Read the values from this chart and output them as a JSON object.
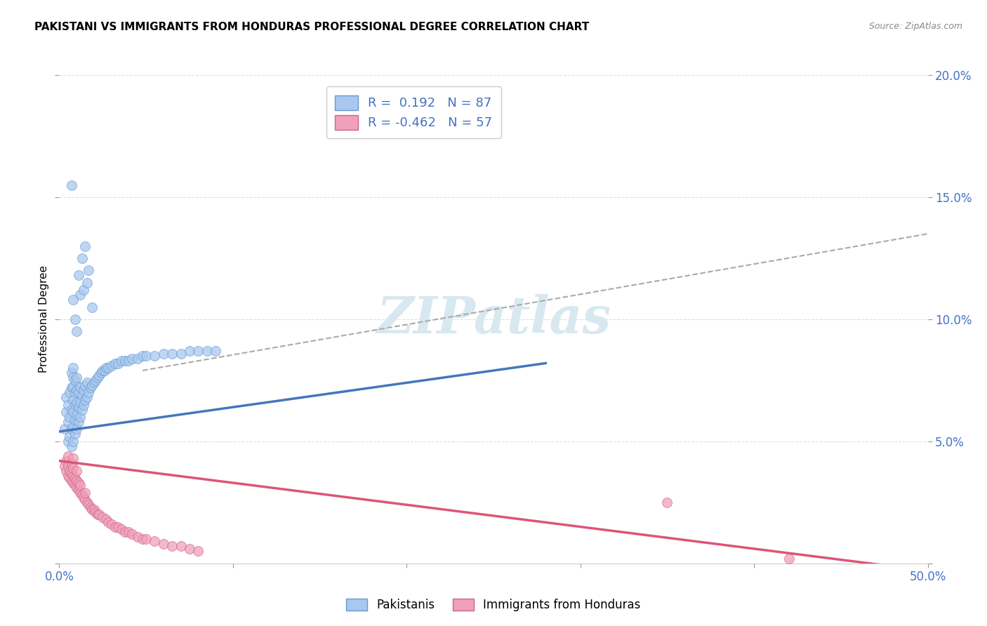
{
  "title": "PAKISTANI VS IMMIGRANTS FROM HONDURAS PROFESSIONAL DEGREE CORRELATION CHART",
  "source": "Source: ZipAtlas.com",
  "ylabel": "Professional Degree",
  "xlim": [
    0,
    0.5
  ],
  "ylim": [
    0,
    0.2
  ],
  "xticks": [
    0.0,
    0.1,
    0.2,
    0.3,
    0.4,
    0.5
  ],
  "yticks": [
    0.0,
    0.05,
    0.1,
    0.15,
    0.2
  ],
  "xtick_labels": [
    "0.0%",
    "",
    "",
    "",
    "",
    "50.0%"
  ],
  "ytick_labels": [
    "",
    "5.0%",
    "10.0%",
    "15.0%",
    "20.0%"
  ],
  "blue_R": 0.192,
  "blue_N": 87,
  "pink_R": -0.462,
  "pink_N": 57,
  "blue_color": "#A8C8F0",
  "pink_color": "#F0A0B8",
  "blue_edge_color": "#6699CC",
  "pink_edge_color": "#CC6688",
  "blue_line_color": "#4477BB",
  "pink_line_color": "#DD5577",
  "dashed_line_color": "#AAAAAA",
  "background_color": "#FFFFFF",
  "grid_color": "#DDDDDD",
  "watermark_color": "#D8E8F0",
  "legend_label_blue": "Pakistanis",
  "legend_label_pink": "Immigrants from Honduras",
  "blue_scatter_x": [
    0.003,
    0.004,
    0.004,
    0.005,
    0.005,
    0.005,
    0.006,
    0.006,
    0.006,
    0.007,
    0.007,
    0.007,
    0.007,
    0.007,
    0.008,
    0.008,
    0.008,
    0.008,
    0.008,
    0.008,
    0.008,
    0.009,
    0.009,
    0.009,
    0.009,
    0.009,
    0.01,
    0.01,
    0.01,
    0.01,
    0.01,
    0.011,
    0.011,
    0.011,
    0.012,
    0.012,
    0.012,
    0.013,
    0.013,
    0.014,
    0.014,
    0.015,
    0.015,
    0.016,
    0.016,
    0.017,
    0.018,
    0.019,
    0.02,
    0.021,
    0.022,
    0.023,
    0.024,
    0.025,
    0.026,
    0.027,
    0.028,
    0.03,
    0.032,
    0.034,
    0.036,
    0.038,
    0.04,
    0.042,
    0.045,
    0.048,
    0.05,
    0.055,
    0.06,
    0.065,
    0.07,
    0.075,
    0.08,
    0.085,
    0.09,
    0.012,
    0.014,
    0.016,
    0.007,
    0.008,
    0.009,
    0.01,
    0.011,
    0.013,
    0.015,
    0.017,
    0.019
  ],
  "blue_scatter_y": [
    0.055,
    0.062,
    0.068,
    0.05,
    0.058,
    0.065,
    0.052,
    0.06,
    0.07,
    0.048,
    0.055,
    0.063,
    0.072,
    0.078,
    0.05,
    0.056,
    0.062,
    0.067,
    0.072,
    0.076,
    0.08,
    0.053,
    0.059,
    0.065,
    0.07,
    0.075,
    0.055,
    0.061,
    0.066,
    0.071,
    0.076,
    0.058,
    0.064,
    0.07,
    0.06,
    0.066,
    0.072,
    0.063,
    0.069,
    0.065,
    0.071,
    0.067,
    0.073,
    0.068,
    0.074,
    0.07,
    0.072,
    0.073,
    0.074,
    0.075,
    0.076,
    0.077,
    0.078,
    0.079,
    0.079,
    0.08,
    0.08,
    0.081,
    0.082,
    0.082,
    0.083,
    0.083,
    0.083,
    0.084,
    0.084,
    0.085,
    0.085,
    0.085,
    0.086,
    0.086,
    0.086,
    0.087,
    0.087,
    0.087,
    0.087,
    0.11,
    0.112,
    0.115,
    0.155,
    0.108,
    0.1,
    0.095,
    0.118,
    0.125,
    0.13,
    0.12,
    0.105
  ],
  "pink_scatter_x": [
    0.003,
    0.004,
    0.004,
    0.005,
    0.005,
    0.005,
    0.006,
    0.006,
    0.007,
    0.007,
    0.007,
    0.008,
    0.008,
    0.008,
    0.008,
    0.009,
    0.009,
    0.01,
    0.01,
    0.01,
    0.011,
    0.011,
    0.012,
    0.012,
    0.013,
    0.014,
    0.015,
    0.015,
    0.016,
    0.017,
    0.018,
    0.019,
    0.02,
    0.021,
    0.022,
    0.023,
    0.025,
    0.027,
    0.028,
    0.03,
    0.032,
    0.034,
    0.036,
    0.038,
    0.04,
    0.042,
    0.045,
    0.048,
    0.05,
    0.055,
    0.06,
    0.065,
    0.07,
    0.075,
    0.08,
    0.35,
    0.42
  ],
  "pink_scatter_y": [
    0.04,
    0.038,
    0.042,
    0.036,
    0.04,
    0.044,
    0.035,
    0.038,
    0.034,
    0.037,
    0.041,
    0.033,
    0.036,
    0.039,
    0.043,
    0.032,
    0.035,
    0.031,
    0.034,
    0.038,
    0.03,
    0.033,
    0.029,
    0.032,
    0.028,
    0.027,
    0.026,
    0.029,
    0.025,
    0.024,
    0.023,
    0.022,
    0.022,
    0.021,
    0.02,
    0.02,
    0.019,
    0.018,
    0.017,
    0.016,
    0.015,
    0.015,
    0.014,
    0.013,
    0.013,
    0.012,
    0.011,
    0.01,
    0.01,
    0.009,
    0.008,
    0.007,
    0.007,
    0.006,
    0.005,
    0.025,
    0.002
  ],
  "blue_trend_x": [
    0.0,
    0.28
  ],
  "blue_trend_y": [
    0.054,
    0.082
  ],
  "pink_trend_x": [
    0.0,
    0.5
  ],
  "pink_trend_y": [
    0.042,
    -0.003
  ],
  "dashed_trend_x": [
    0.048,
    0.5
  ],
  "dashed_trend_y": [
    0.079,
    0.135
  ]
}
